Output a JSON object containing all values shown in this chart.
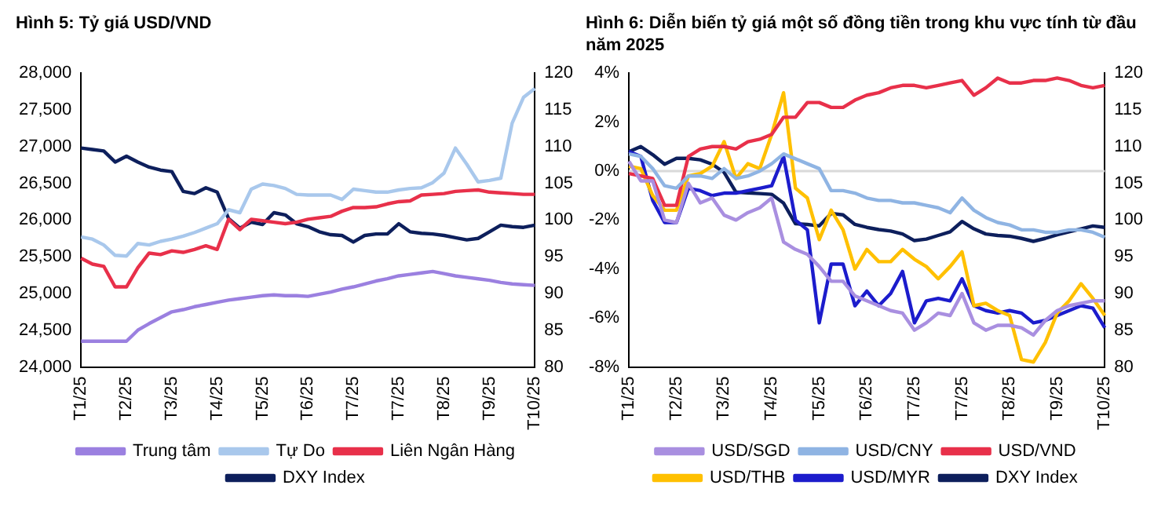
{
  "chart_data": [
    {
      "type": "line",
      "title": "Hình 5: Tỷ giá USD/VND",
      "categories": [
        "T1/25",
        null,
        null,
        null,
        "T2/25",
        null,
        null,
        null,
        "T3/25",
        null,
        null,
        null,
        "T4/25",
        null,
        null,
        null,
        "T5/25",
        null,
        null,
        null,
        "T6/25",
        null,
        null,
        null,
        "T7/25",
        null,
        null,
        null,
        "T7/25",
        null,
        null,
        null,
        "T8/25",
        null,
        null,
        null,
        "T9/25",
        null,
        null,
        null,
        "T10/25"
      ],
      "ylim": [
        24000,
        28000
      ],
      "yticks": [
        {
          "value": 24000,
          "label": "24,000"
        },
        {
          "value": 24500,
          "label": "24,500"
        },
        {
          "value": 25000,
          "label": "25,000"
        },
        {
          "value": 25500,
          "label": "25,500"
        },
        {
          "value": 26000,
          "label": "26,000"
        },
        {
          "value": 26500,
          "label": "26,500"
        },
        {
          "value": 27000,
          "label": "27,000"
        },
        {
          "value": 27500,
          "label": "27,500"
        },
        {
          "value": 28000,
          "label": "28,000"
        }
      ],
      "y2lim": [
        80,
        120
      ],
      "y2ticks": [
        80,
        85,
        90,
        95,
        100,
        105,
        110,
        115,
        120
      ],
      "legend": "bottom",
      "marker": "none",
      "series": [
        {
          "name": "Trung tâm",
          "color": "#9b80e0",
          "values": [
            24350,
            24350,
            24350,
            24350,
            24350,
            24500,
            24590,
            24670,
            24750,
            24780,
            24820,
            24850,
            24880,
            24910,
            24930,
            24950,
            24970,
            24980,
            24970,
            24970,
            24960,
            24990,
            25020,
            25060,
            25090,
            25130,
            25170,
            25200,
            25240,
            25260,
            25280,
            25300,
            25270,
            25240,
            25220,
            25200,
            25180,
            25150,
            25130,
            25120,
            25110
          ]
        },
        {
          "name": "Tự Do",
          "color": "#a9c8ec",
          "values": [
            25770,
            25740,
            25660,
            25520,
            25510,
            25680,
            25660,
            25710,
            25740,
            25780,
            25830,
            25890,
            25950,
            26140,
            26100,
            26420,
            26490,
            26470,
            26430,
            26350,
            26340,
            26340,
            26340,
            26280,
            26420,
            26400,
            26380,
            26380,
            26410,
            26430,
            26440,
            26510,
            26640,
            26980,
            26760,
            26520,
            26540,
            26570,
            27320,
            27670,
            27790
          ]
        },
        {
          "name": "Liên Ngân Hàng",
          "color": "#e8304a",
          "values": [
            25480,
            25400,
            25370,
            25090,
            25090,
            25350,
            25550,
            25530,
            25580,
            25560,
            25600,
            25650,
            25600,
            26010,
            25870,
            26010,
            25990,
            25970,
            25950,
            25970,
            26010,
            26030,
            26050,
            26120,
            26170,
            26170,
            26180,
            26220,
            26250,
            26260,
            26340,
            26350,
            26360,
            26390,
            26400,
            26410,
            26380,
            26370,
            26360,
            26350,
            26350
          ]
        },
        {
          "name": "DXY Index",
          "color": "#0d1f5c",
          "axis": "y2",
          "values": [
            109.8,
            109.6,
            109.4,
            107.9,
            108.7,
            107.9,
            107.2,
            106.8,
            106.6,
            103.9,
            103.6,
            104.4,
            103.8,
            100.2,
            98.9,
            99.7,
            99.4,
            101,
            100.7,
            99.5,
            99.1,
            98.4,
            98,
            97.9,
            97,
            97.9,
            98.1,
            98.1,
            99.5,
            98.4,
            98.2,
            98.1,
            97.9,
            97.6,
            97.3,
            97.5,
            98.4,
            99.3,
            99.1,
            99,
            99.3
          ]
        }
      ]
    },
    {
      "type": "line",
      "title": "Hình 6: Diễn biến tỷ giá một số đồng tiền trong khu vực tính từ đầu năm 2025",
      "categories": [
        "T1/25",
        null,
        null,
        null,
        "T2/25",
        null,
        null,
        null,
        "T3/25",
        null,
        null,
        null,
        "T4/25",
        null,
        null,
        null,
        "T5/25",
        null,
        null,
        null,
        "T6/25",
        null,
        null,
        null,
        "T7/25",
        null,
        null,
        null,
        "T7/25",
        null,
        null,
        null,
        "T8/25",
        null,
        null,
        null,
        "T9/25",
        null,
        null,
        null,
        "T10/25"
      ],
      "ylim": [
        -8,
        4
      ],
      "yticks": [
        {
          "value": -8,
          "label": "-8%"
        },
        {
          "value": -6,
          "label": "-6%"
        },
        {
          "value": -4,
          "label": "-4%"
        },
        {
          "value": -2,
          "label": "-2%"
        },
        {
          "value": 0,
          "label": "0%"
        },
        {
          "value": 2,
          "label": "2%"
        },
        {
          "value": 4,
          "label": "4%"
        }
      ],
      "y2lim": [
        80,
        120
      ],
      "y2ticks": [
        80,
        85,
        90,
        95,
        100,
        105,
        110,
        115,
        120
      ],
      "legend": "bottom",
      "marker": "none",
      "ref_lines": [
        {
          "axis": "y",
          "value": 0,
          "color": "#d9d9d9"
        }
      ],
      "series": [
        {
          "name": "USD/SGD",
          "color": "#a98fe0",
          "values": [
            0.4,
            -0.4,
            -0.4,
            -2,
            -2.1,
            -0.5,
            -1.3,
            -1.1,
            -1.8,
            -2,
            -1.7,
            -1.5,
            -1.1,
            -2.9,
            -3.2,
            -3.4,
            -3.9,
            -4.5,
            -4.5,
            -5.1,
            -5.3,
            -5.5,
            -5.7,
            -5.8,
            -6.5,
            -6.2,
            -5.8,
            -5.9,
            -5,
            -6.2,
            -6.5,
            -6.3,
            -6.3,
            -6.4,
            -6.7,
            -6.1,
            -5.7,
            -5.5,
            -5.4,
            -5.3,
            -5.3
          ]
        },
        {
          "name": "USD/CNY",
          "color": "#8fb4e3",
          "values": [
            0.7,
            0.6,
            0.1,
            -0.6,
            -0.7,
            -0.2,
            -0.2,
            -0.3,
            0.1,
            -0.3,
            -0.2,
            0,
            0.3,
            0.7,
            0.5,
            0.3,
            0.1,
            -0.8,
            -0.8,
            -0.9,
            -1.1,
            -1.2,
            -1.2,
            -1.3,
            -1.3,
            -1.4,
            -1.5,
            -1.7,
            -1.1,
            -1.6,
            -1.9,
            -2.1,
            -2.2,
            -2.4,
            -2.4,
            -2.5,
            -2.5,
            -2.4,
            -2.4,
            -2.5,
            -2.7
          ]
        },
        {
          "name": "USD/VND",
          "color": "#e8304a",
          "values": [
            -0.1,
            -0.2,
            -0.3,
            -1.4,
            -1.4,
            0.6,
            0.9,
            1,
            1,
            0.9,
            1.2,
            1.3,
            1.5,
            2.2,
            2.2,
            2.8,
            2.8,
            2.6,
            2.6,
            2.9,
            3.1,
            3.2,
            3.4,
            3.5,
            3.5,
            3.4,
            3.5,
            3.6,
            3.7,
            3.1,
            3.4,
            3.8,
            3.6,
            3.6,
            3.7,
            3.7,
            3.8,
            3.7,
            3.5,
            3.4,
            3.5
          ]
        },
        {
          "name": "USD/THB",
          "color": "#ffc000",
          "values": [
            0.2,
            0.1,
            -1,
            -1.6,
            -1.6,
            -0.2,
            -0.1,
            0.2,
            1.2,
            -0.3,
            0.3,
            0.1,
            1.5,
            3.2,
            -0.7,
            -1.1,
            -2.8,
            -1.6,
            -2.4,
            -4,
            -3.2,
            -3.7,
            -3.7,
            -3.2,
            -3.6,
            -3.9,
            -4.4,
            -3.9,
            -3.3,
            -5.5,
            -5.4,
            -5.7,
            -5.9,
            -7.7,
            -7.8,
            -7,
            -5.8,
            -5.3,
            -4.6,
            -5.2,
            -5.9
          ]
        },
        {
          "name": "USD/MYR",
          "color": "#1c1ccc",
          "values": [
            0.8,
            0.6,
            -1.2,
            -2.1,
            -2.1,
            -0.7,
            -0.8,
            -1,
            -0.9,
            -0.9,
            -0.8,
            -0.7,
            -0.6,
            0.6,
            -2,
            -2.4,
            -6.2,
            -3.8,
            -3.8,
            -5.5,
            -4.9,
            -5.5,
            -5,
            -4.1,
            -6.2,
            -5.3,
            -5.2,
            -5.3,
            -4.4,
            -5.5,
            -5.7,
            -5.8,
            -5.7,
            -5.8,
            -6.2,
            -6.1,
            -5.9,
            -5.7,
            -5.5,
            -5.6,
            -6.4
          ]
        },
        {
          "name": "DXY Index",
          "color": "#0d1f5c",
          "axis": "y2",
          "values": [
            109.3,
            110,
            108.9,
            107.6,
            108.4,
            108.4,
            108.2,
            107.6,
            106.5,
            103.8,
            103.7,
            103.6,
            103.5,
            102.3,
            99.5,
            99.4,
            99.2,
            100.9,
            100.7,
            99.4,
            99,
            98.7,
            98.5,
            98.1,
            97.2,
            97.4,
            97.9,
            98.4,
            99.8,
            98.8,
            98.1,
            97.9,
            97.8,
            97.5,
            97.1,
            97.5,
            98,
            98.4,
            98.8,
            99.2,
            99
          ]
        }
      ]
    }
  ]
}
